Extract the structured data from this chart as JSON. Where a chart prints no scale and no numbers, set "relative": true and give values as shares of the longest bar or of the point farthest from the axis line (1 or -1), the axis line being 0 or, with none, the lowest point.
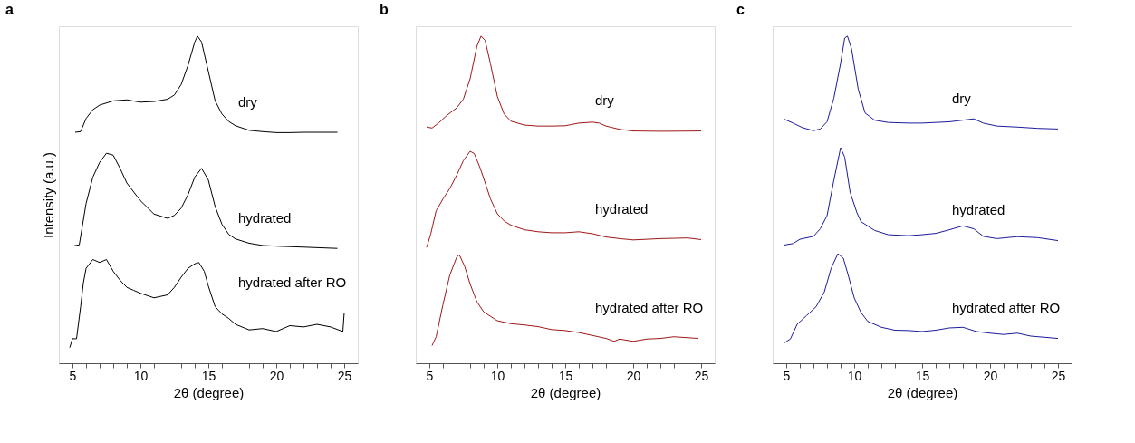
{
  "chart_data": [
    {
      "type": "line",
      "title": "a",
      "xlabel": "2θ (degree)",
      "ylabel": "Intensity (a.u.)",
      "relative": true,
      "tick_labels": "x",
      "grid": false,
      "legend": false,
      "marker": "none",
      "line_style": "solid",
      "xlim": [
        4,
        26
      ],
      "xticks": [
        5,
        {
          "value": 6,
          "label": null
        },
        {
          "value": 7,
          "label": null
        },
        {
          "value": 8,
          "label": null
        },
        {
          "value": 9,
          "label": null
        },
        10,
        {
          "value": 11,
          "label": null
        },
        {
          "value": 12,
          "label": null
        },
        {
          "value": 13,
          "label": null
        },
        {
          "value": 14,
          "label": null
        },
        15,
        {
          "value": 16,
          "label": null
        },
        {
          "value": 17,
          "label": null
        },
        {
          "value": 18,
          "label": null
        },
        {
          "value": 19,
          "label": null
        },
        20,
        {
          "value": 21,
          "label": null
        },
        {
          "value": 22,
          "label": null
        },
        {
          "value": 23,
          "label": null
        },
        {
          "value": 24,
          "label": null
        },
        25
      ],
      "series": [
        {
          "name": "dry",
          "color": "#000000",
          "x": [
            5.2,
            5.6,
            6.0,
            6.5,
            7,
            8,
            9,
            10,
            11,
            12,
            12.5,
            13,
            13.5,
            14,
            14.2,
            14.5,
            15,
            15.5,
            16,
            16.5,
            17,
            18,
            19,
            20,
            21,
            22,
            23,
            24.5
          ],
          "values": [
            0.706,
            0.708,
            0.748,
            0.775,
            0.789,
            0.802,
            0.805,
            0.798,
            0.8,
            0.807,
            0.82,
            0.852,
            0.91,
            0.982,
            1.0,
            0.982,
            0.892,
            0.802,
            0.762,
            0.739,
            0.726,
            0.712,
            0.708,
            0.705,
            0.705,
            0.706,
            0.706,
            0.706
          ]
        },
        {
          "name": "hydrated",
          "color": "#000000",
          "x": [
            5.1,
            5.5,
            6,
            6.5,
            7,
            7.5,
            8,
            8.5,
            9,
            10,
            11,
            12,
            12.5,
            13,
            13.5,
            14,
            14.5,
            15,
            15.5,
            16,
            16.5,
            17,
            18,
            19,
            20,
            22,
            24.5
          ],
          "values": [
            0.359,
            0.362,
            0.488,
            0.569,
            0.614,
            0.642,
            0.636,
            0.596,
            0.551,
            0.497,
            0.456,
            0.443,
            0.452,
            0.474,
            0.515,
            0.569,
            0.596,
            0.56,
            0.479,
            0.425,
            0.394,
            0.38,
            0.367,
            0.36,
            0.358,
            0.355,
            0.351
          ]
        },
        {
          "name": "hydrated after RO",
          "color": "#000000",
          "x": [
            4.8,
            5.0,
            5.3,
            5.6,
            5.8,
            6,
            6.5,
            7,
            7.5,
            8,
            8.5,
            9,
            9.5,
            10,
            11,
            12,
            12.5,
            13,
            13.5,
            14,
            14.3,
            14.7,
            15,
            15.5,
            16,
            16.5,
            17,
            18,
            19,
            20,
            21,
            22,
            23,
            24,
            24.9,
            25
          ],
          "values": [
            0.048,
            0.075,
            0.075,
            0.173,
            0.245,
            0.29,
            0.317,
            0.308,
            0.317,
            0.281,
            0.254,
            0.232,
            0.223,
            0.214,
            0.2,
            0.209,
            0.232,
            0.263,
            0.29,
            0.304,
            0.308,
            0.281,
            0.236,
            0.173,
            0.151,
            0.137,
            0.119,
            0.102,
            0.106,
            0.097,
            0.115,
            0.111,
            0.119,
            0.111,
            0.097,
            0.155
          ]
        }
      ]
    },
    {
      "type": "line",
      "title": "b",
      "xlabel": "2θ (degree)",
      "relative": true,
      "tick_labels": "x",
      "grid": false,
      "legend": false,
      "marker": "none",
      "line_style": "solid",
      "xlim": [
        4,
        26
      ],
      "xticks": [
        5,
        {
          "value": 6,
          "label": null
        },
        {
          "value": 7,
          "label": null
        },
        {
          "value": 8,
          "label": null
        },
        {
          "value": 9,
          "label": null
        },
        10,
        {
          "value": 11,
          "label": null
        },
        {
          "value": 12,
          "label": null
        },
        {
          "value": 13,
          "label": null
        },
        {
          "value": 14,
          "label": null
        },
        15,
        {
          "value": 16,
          "label": null
        },
        {
          "value": 17,
          "label": null
        },
        {
          "value": 18,
          "label": null
        },
        {
          "value": 19,
          "label": null
        },
        20,
        {
          "value": 21,
          "label": null
        },
        {
          "value": 22,
          "label": null
        },
        {
          "value": 23,
          "label": null
        },
        {
          "value": 24,
          "label": null
        },
        25
      ],
      "series": [
        {
          "name": "dry",
          "color": "#a01818",
          "x": [
            4.8,
            5.2,
            5.7,
            6.3,
            7,
            7.5,
            8,
            8.5,
            8.8,
            9.1,
            9.5,
            10,
            10.5,
            11,
            12,
            13,
            14,
            15,
            16,
            17,
            17.5,
            18,
            19,
            20,
            22,
            25
          ],
          "values": [
            0.722,
            0.719,
            0.735,
            0.758,
            0.78,
            0.807,
            0.87,
            0.969,
            1.0,
            0.987,
            0.915,
            0.816,
            0.762,
            0.74,
            0.728,
            0.725,
            0.725,
            0.726,
            0.734,
            0.737,
            0.734,
            0.725,
            0.715,
            0.71,
            0.709,
            0.71
          ]
        },
        {
          "name": "hydrated",
          "color": "#a01818",
          "x": [
            4.8,
            5.1,
            5.5,
            6,
            6.5,
            7,
            7.5,
            8,
            8.3,
            8.7,
            9,
            9.5,
            10,
            10.5,
            11,
            12,
            13,
            14,
            15,
            16,
            17,
            18,
            19,
            20,
            22,
            24,
            25
          ],
          "values": [
            0.354,
            0.395,
            0.466,
            0.502,
            0.534,
            0.574,
            0.619,
            0.648,
            0.641,
            0.601,
            0.565,
            0.502,
            0.457,
            0.435,
            0.422,
            0.408,
            0.402,
            0.399,
            0.399,
            0.402,
            0.396,
            0.386,
            0.381,
            0.377,
            0.381,
            0.383,
            0.378
          ]
        },
        {
          "name": "hydrated after RO",
          "color": "#a01818",
          "x": [
            5.2,
            5.5,
            6,
            6.5,
            7,
            7.2,
            7.6,
            8,
            8.5,
            9,
            10,
            11,
            12,
            13,
            14,
            15,
            16,
            17,
            18,
            18.6,
            19,
            20,
            21,
            22,
            23,
            24.8
          ],
          "values": [
            0.054,
            0.081,
            0.179,
            0.269,
            0.323,
            0.332,
            0.296,
            0.242,
            0.188,
            0.157,
            0.13,
            0.121,
            0.117,
            0.112,
            0.103,
            0.1,
            0.094,
            0.085,
            0.076,
            0.067,
            0.074,
            0.067,
            0.074,
            0.076,
            0.081,
            0.076
          ]
        }
      ]
    },
    {
      "type": "line",
      "title": "c",
      "xlabel": "2θ (degree)",
      "relative": true,
      "tick_labels": "x",
      "grid": false,
      "legend": false,
      "marker": "none",
      "line_style": "solid",
      "xlim": [
        4,
        26
      ],
      "xticks": [
        5,
        {
          "value": 6,
          "label": null
        },
        {
          "value": 7,
          "label": null
        },
        {
          "value": 8,
          "label": null
        },
        {
          "value": 9,
          "label": null
        },
        10,
        {
          "value": 11,
          "label": null
        },
        {
          "value": 12,
          "label": null
        },
        {
          "value": 13,
          "label": null
        },
        {
          "value": 14,
          "label": null
        },
        15,
        {
          "value": 16,
          "label": null
        },
        {
          "value": 17,
          "label": null
        },
        {
          "value": 18,
          "label": null
        },
        {
          "value": 19,
          "label": null
        },
        20,
        {
          "value": 21,
          "label": null
        },
        {
          "value": 22,
          "label": null
        },
        {
          "value": 23,
          "label": null
        },
        {
          "value": 24,
          "label": null
        },
        25
      ],
      "series": [
        {
          "name": "dry",
          "color": "#1c1c9c",
          "x": [
            4.8,
            5.5,
            6.2,
            7,
            7.5,
            8,
            8.5,
            9,
            9.3,
            9.5,
            9.8,
            10.3,
            10.8,
            11.5,
            12.5,
            14,
            15,
            16,
            17,
            18,
            18.8,
            19.5,
            20.5,
            22,
            23.5,
            25
          ],
          "values": [
            0.747,
            0.734,
            0.72,
            0.711,
            0.716,
            0.738,
            0.81,
            0.917,
            0.994,
            1.0,
            0.962,
            0.837,
            0.765,
            0.743,
            0.736,
            0.734,
            0.734,
            0.736,
            0.738,
            0.743,
            0.747,
            0.734,
            0.725,
            0.722,
            0.718,
            0.716
          ]
        },
        {
          "name": "hydrated",
          "color": "#1c1c9c",
          "x": [
            4.8,
            5.5,
            6,
            7,
            7.5,
            8,
            8.5,
            9,
            9.3,
            9.7,
            10.2,
            10.5,
            11.5,
            12.5,
            14,
            15,
            16,
            17,
            18,
            18.8,
            19.5,
            20.5,
            22,
            23.5,
            25
          ],
          "values": [
            0.361,
            0.366,
            0.379,
            0.388,
            0.411,
            0.451,
            0.559,
            0.659,
            0.63,
            0.523,
            0.46,
            0.433,
            0.406,
            0.393,
            0.39,
            0.393,
            0.397,
            0.408,
            0.42,
            0.411,
            0.388,
            0.381,
            0.387,
            0.384,
            0.375
          ]
        },
        {
          "name": "hydrated after RO",
          "color": "#1c1c9c",
          "x": [
            4.8,
            5.3,
            5.8,
            6.5,
            7.2,
            7.8,
            8.3,
            8.8,
            9.2,
            9.6,
            10,
            10.5,
            11,
            12,
            13,
            14,
            15,
            16,
            17,
            18,
            19,
            20,
            21,
            22,
            23,
            25
          ],
          "values": [
            0.061,
            0.074,
            0.119,
            0.146,
            0.173,
            0.218,
            0.29,
            0.335,
            0.321,
            0.263,
            0.2,
            0.155,
            0.128,
            0.11,
            0.101,
            0.1,
            0.097,
            0.101,
            0.108,
            0.11,
            0.097,
            0.092,
            0.088,
            0.092,
            0.083,
            0.076
          ]
        }
      ]
    }
  ]
}
